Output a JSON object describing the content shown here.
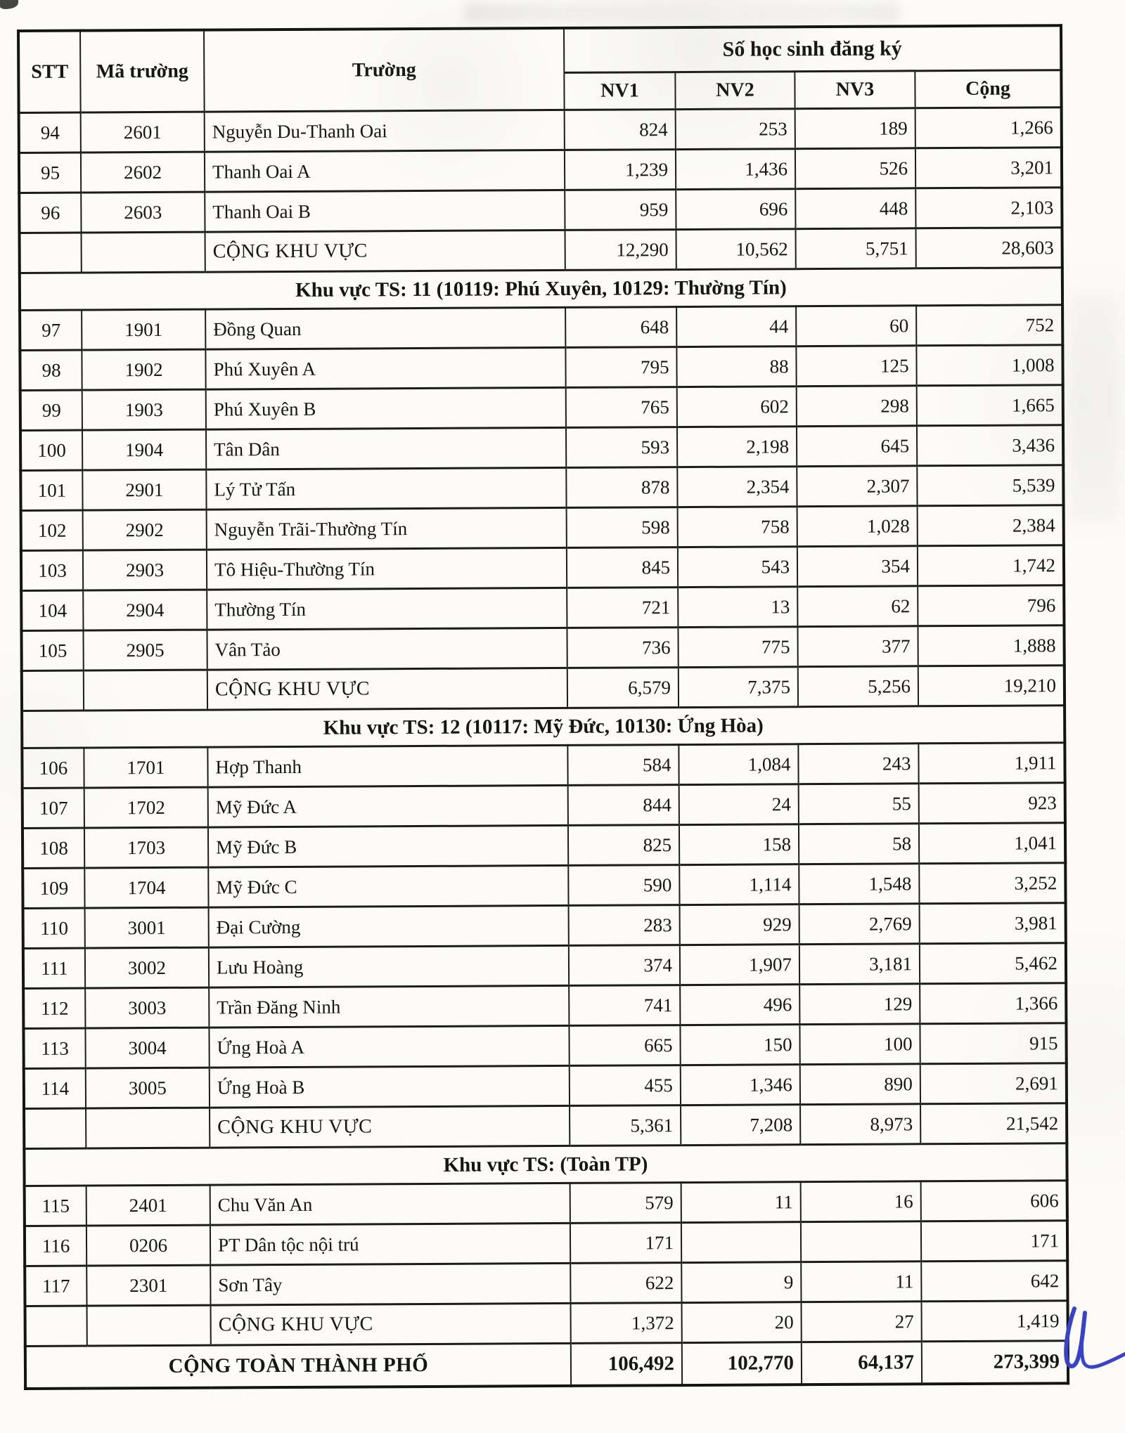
{
  "table": {
    "headers": {
      "stt": "STT",
      "ma_truong": "Mã trường",
      "truong": "Trường",
      "group": "Số học sinh đăng ký",
      "nv1": "NV1",
      "nv2": "NV2",
      "nv3": "NV3",
      "cong": "Cộng"
    },
    "subtotal_label": "CỘNG KHU VỰC",
    "rows": [
      {
        "type": "school",
        "stt": "94",
        "code": "2601",
        "name": "Nguyễn Du-Thanh Oai",
        "nv1": "824",
        "nv2": "253",
        "nv3": "189",
        "cong": "1,266"
      },
      {
        "type": "school",
        "stt": "95",
        "code": "2602",
        "name": "Thanh Oai A",
        "nv1": "1,239",
        "nv2": "1,436",
        "nv3": "526",
        "cong": "3,201"
      },
      {
        "type": "school",
        "stt": "96",
        "code": "2603",
        "name": "Thanh Oai B",
        "nv1": "959",
        "nv2": "696",
        "nv3": "448",
        "cong": "2,103"
      },
      {
        "type": "subtotal",
        "label": "CỘNG KHU VỰC",
        "nv1": "12,290",
        "nv2": "10,562",
        "nv3": "5,751",
        "cong": "28,603"
      },
      {
        "type": "section",
        "label": "Khu vực TS: 11 (10119: Phú Xuyên, 10129: Thường Tín)"
      },
      {
        "type": "school",
        "stt": "97",
        "code": "1901",
        "name": "Đồng Quan",
        "nv1": "648",
        "nv2": "44",
        "nv3": "60",
        "cong": "752"
      },
      {
        "type": "school",
        "stt": "98",
        "code": "1902",
        "name": "Phú Xuyên A",
        "nv1": "795",
        "nv2": "88",
        "nv3": "125",
        "cong": "1,008"
      },
      {
        "type": "school",
        "stt": "99",
        "code": "1903",
        "name": "Phú Xuyên B",
        "nv1": "765",
        "nv2": "602",
        "nv3": "298",
        "cong": "1,665"
      },
      {
        "type": "school",
        "stt": "100",
        "code": "1904",
        "name": "Tân Dân",
        "nv1": "593",
        "nv2": "2,198",
        "nv3": "645",
        "cong": "3,436"
      },
      {
        "type": "school",
        "stt": "101",
        "code": "2901",
        "name": "Lý Tử Tấn",
        "nv1": "878",
        "nv2": "2,354",
        "nv3": "2,307",
        "cong": "5,539"
      },
      {
        "type": "school",
        "stt": "102",
        "code": "2902",
        "name": "Nguyễn Trãi-Thường Tín",
        "nv1": "598",
        "nv2": "758",
        "nv3": "1,028",
        "cong": "2,384"
      },
      {
        "type": "school",
        "stt": "103",
        "code": "2903",
        "name": "Tô Hiệu-Thường Tín",
        "nv1": "845",
        "nv2": "543",
        "nv3": "354",
        "cong": "1,742"
      },
      {
        "type": "school",
        "stt": "104",
        "code": "2904",
        "name": "Thường Tín",
        "nv1": "721",
        "nv2": "13",
        "nv3": "62",
        "cong": "796"
      },
      {
        "type": "school",
        "stt": "105",
        "code": "2905",
        "name": "Vân Tảo",
        "nv1": "736",
        "nv2": "775",
        "nv3": "377",
        "cong": "1,888"
      },
      {
        "type": "subtotal",
        "label": "CỘNG KHU VỰC",
        "nv1": "6,579",
        "nv2": "7,375",
        "nv3": "5,256",
        "cong": "19,210"
      },
      {
        "type": "section",
        "label": "Khu vực TS: 12 (10117: Mỹ Đức, 10130: Ứng Hòa)"
      },
      {
        "type": "school",
        "stt": "106",
        "code": "1701",
        "name": "Hợp Thanh",
        "nv1": "584",
        "nv2": "1,084",
        "nv3": "243",
        "cong": "1,911"
      },
      {
        "type": "school",
        "stt": "107",
        "code": "1702",
        "name": "Mỹ Đức A",
        "nv1": "844",
        "nv2": "24",
        "nv3": "55",
        "cong": "923"
      },
      {
        "type": "school",
        "stt": "108",
        "code": "1703",
        "name": "Mỹ Đức B",
        "nv1": "825",
        "nv2": "158",
        "nv3": "58",
        "cong": "1,041"
      },
      {
        "type": "school",
        "stt": "109",
        "code": "1704",
        "name": "Mỹ Đức C",
        "nv1": "590",
        "nv2": "1,114",
        "nv3": "1,548",
        "cong": "3,252"
      },
      {
        "type": "school",
        "stt": "110",
        "code": "3001",
        "name": "Đại Cường",
        "nv1": "283",
        "nv2": "929",
        "nv3": "2,769",
        "cong": "3,981"
      },
      {
        "type": "school",
        "stt": "111",
        "code": "3002",
        "name": "Lưu Hoàng",
        "nv1": "374",
        "nv2": "1,907",
        "nv3": "3,181",
        "cong": "5,462"
      },
      {
        "type": "school",
        "stt": "112",
        "code": "3003",
        "name": "Trần Đăng Ninh",
        "nv1": "741",
        "nv2": "496",
        "nv3": "129",
        "cong": "1,366"
      },
      {
        "type": "school",
        "stt": "113",
        "code": "3004",
        "name": "Ứng Hoà A",
        "nv1": "665",
        "nv2": "150",
        "nv3": "100",
        "cong": "915"
      },
      {
        "type": "school",
        "stt": "114",
        "code": "3005",
        "name": "Ứng Hoà B",
        "nv1": "455",
        "nv2": "1,346",
        "nv3": "890",
        "cong": "2,691"
      },
      {
        "type": "subtotal",
        "label": "CỘNG KHU VỰC",
        "nv1": "5,361",
        "nv2": "7,208",
        "nv3": "8,973",
        "cong": "21,542"
      },
      {
        "type": "section",
        "label": "Khu vực TS: (Toàn TP)"
      },
      {
        "type": "school",
        "stt": "115",
        "code": "2401",
        "name": "Chu Văn An",
        "nv1": "579",
        "nv2": "11",
        "nv3": "16",
        "cong": "606"
      },
      {
        "type": "school",
        "stt": "116",
        "code": "0206",
        "name": "PT Dân tộc nội trú",
        "nv1": "171",
        "nv2": "",
        "nv3": "",
        "cong": "171"
      },
      {
        "type": "school",
        "stt": "117",
        "code": "2301",
        "name": "Sơn Tây",
        "nv1": "622",
        "nv2": "9",
        "nv3": "11",
        "cong": "642"
      },
      {
        "type": "subtotal",
        "label": "CỘNG KHU VỰC",
        "nv1": "1,372",
        "nv2": "20",
        "nv3": "27",
        "cong": "1,419"
      },
      {
        "type": "grand",
        "label": "CỘNG TOÀN THÀNH PHỐ",
        "nv1": "106,492",
        "nv2": "102,770",
        "nv3": "64,137",
        "cong": "273,399"
      }
    ]
  },
  "signature": {
    "ink_color": "#3843c9"
  }
}
